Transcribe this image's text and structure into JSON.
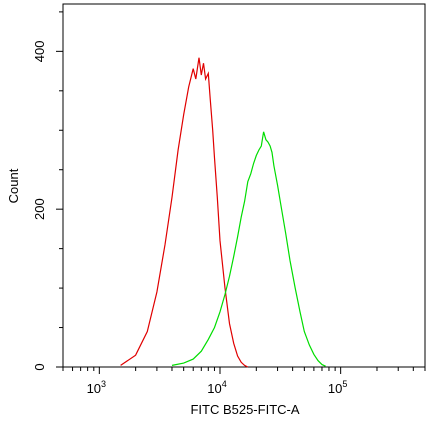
{
  "chart_data": {
    "type": "line",
    "title": "",
    "xlabel": "FITC B525-FITC-A",
    "ylabel": "Count",
    "x_scale": "log",
    "xlim": [
      500,
      500000
    ],
    "ylim": [
      0,
      460
    ],
    "x_ticks": [
      {
        "value": 1000,
        "base": "10",
        "exp": "3"
      },
      {
        "value": 10000,
        "base": "10",
        "exp": "4"
      },
      {
        "value": 100000,
        "base": "10",
        "exp": "5"
      }
    ],
    "y_ticks": [
      {
        "value": 0,
        "label": "0"
      },
      {
        "value": 200,
        "label": "200"
      },
      {
        "value": 400,
        "label": "400"
      }
    ],
    "grid": false,
    "legend": "none",
    "series": [
      {
        "color": "#e00000",
        "x": [
          1500,
          2000,
          2500,
          3000,
          3500,
          4000,
          4500,
          5000,
          5500,
          6000,
          6300,
          6700,
          7000,
          7300,
          7600,
          8000,
          8300,
          8700,
          9000,
          9500,
          10000,
          11000,
          12000,
          13000,
          14000,
          15000,
          16000,
          17000
        ],
        "y": [
          2,
          15,
          45,
          95,
          155,
          215,
          275,
          320,
          355,
          378,
          365,
          392,
          370,
          385,
          365,
          372,
          340,
          300,
          265,
          215,
          160,
          100,
          55,
          30,
          14,
          6,
          2,
          0
        ]
      },
      {
        "color": "#00dd00",
        "x": [
          4000,
          5000,
          6000,
          7000,
          8000,
          9000,
          10000,
          11000,
          12000,
          13000,
          14000,
          15000,
          16000,
          17000,
          18000,
          19000,
          20000,
          21000,
          22000,
          23000,
          24000,
          25000,
          26000,
          27000,
          28000,
          30000,
          32000,
          35000,
          38000,
          42000,
          46000,
          50000,
          55000,
          60000,
          65000,
          70000,
          75000
        ],
        "y": [
          2,
          5,
          10,
          20,
          35,
          50,
          70,
          92,
          115,
          140,
          165,
          190,
          210,
          235,
          245,
          258,
          268,
          275,
          280,
          298,
          288,
          285,
          280,
          272,
          255,
          230,
          205,
          170,
          135,
          100,
          70,
          45,
          28,
          16,
          8,
          3,
          1
        ]
      }
    ]
  }
}
